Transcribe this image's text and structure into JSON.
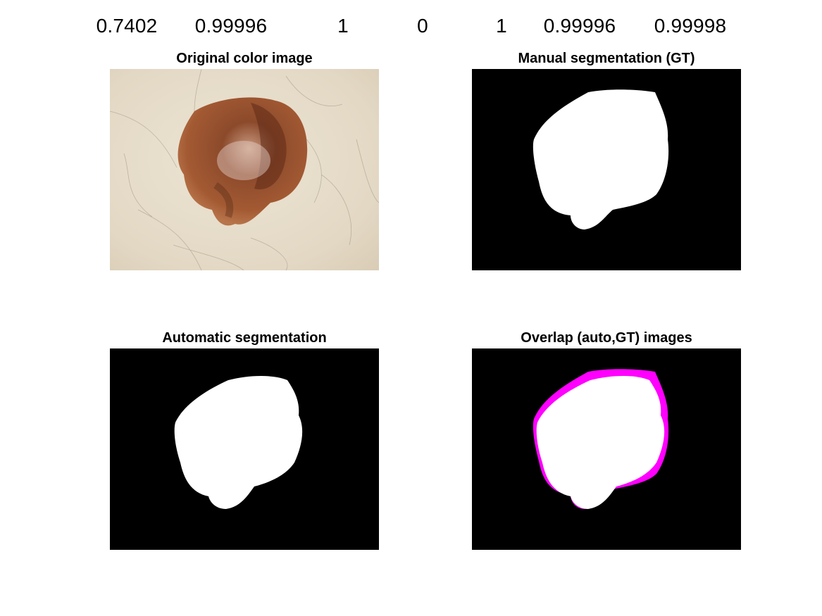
{
  "metrics": [
    "0.7402",
    "0.99996",
    "1",
    "0",
    "1",
    "0.99996",
    "0.99998"
  ],
  "subplots": [
    {
      "title": "Original color image"
    },
    {
      "title": "Manual segmentation (GT)"
    },
    {
      "title": "Automatic segmentation"
    },
    {
      "title": "Overlap (auto,GT) images"
    }
  ],
  "colors": {
    "mask_background": "#000000",
    "mask_foreground": "#ffffff",
    "overlap_difference": "#ff00ff",
    "skin": "#e7ddcb",
    "lesion_outer": "#a65e38",
    "lesion_inner": "#6e3320"
  }
}
